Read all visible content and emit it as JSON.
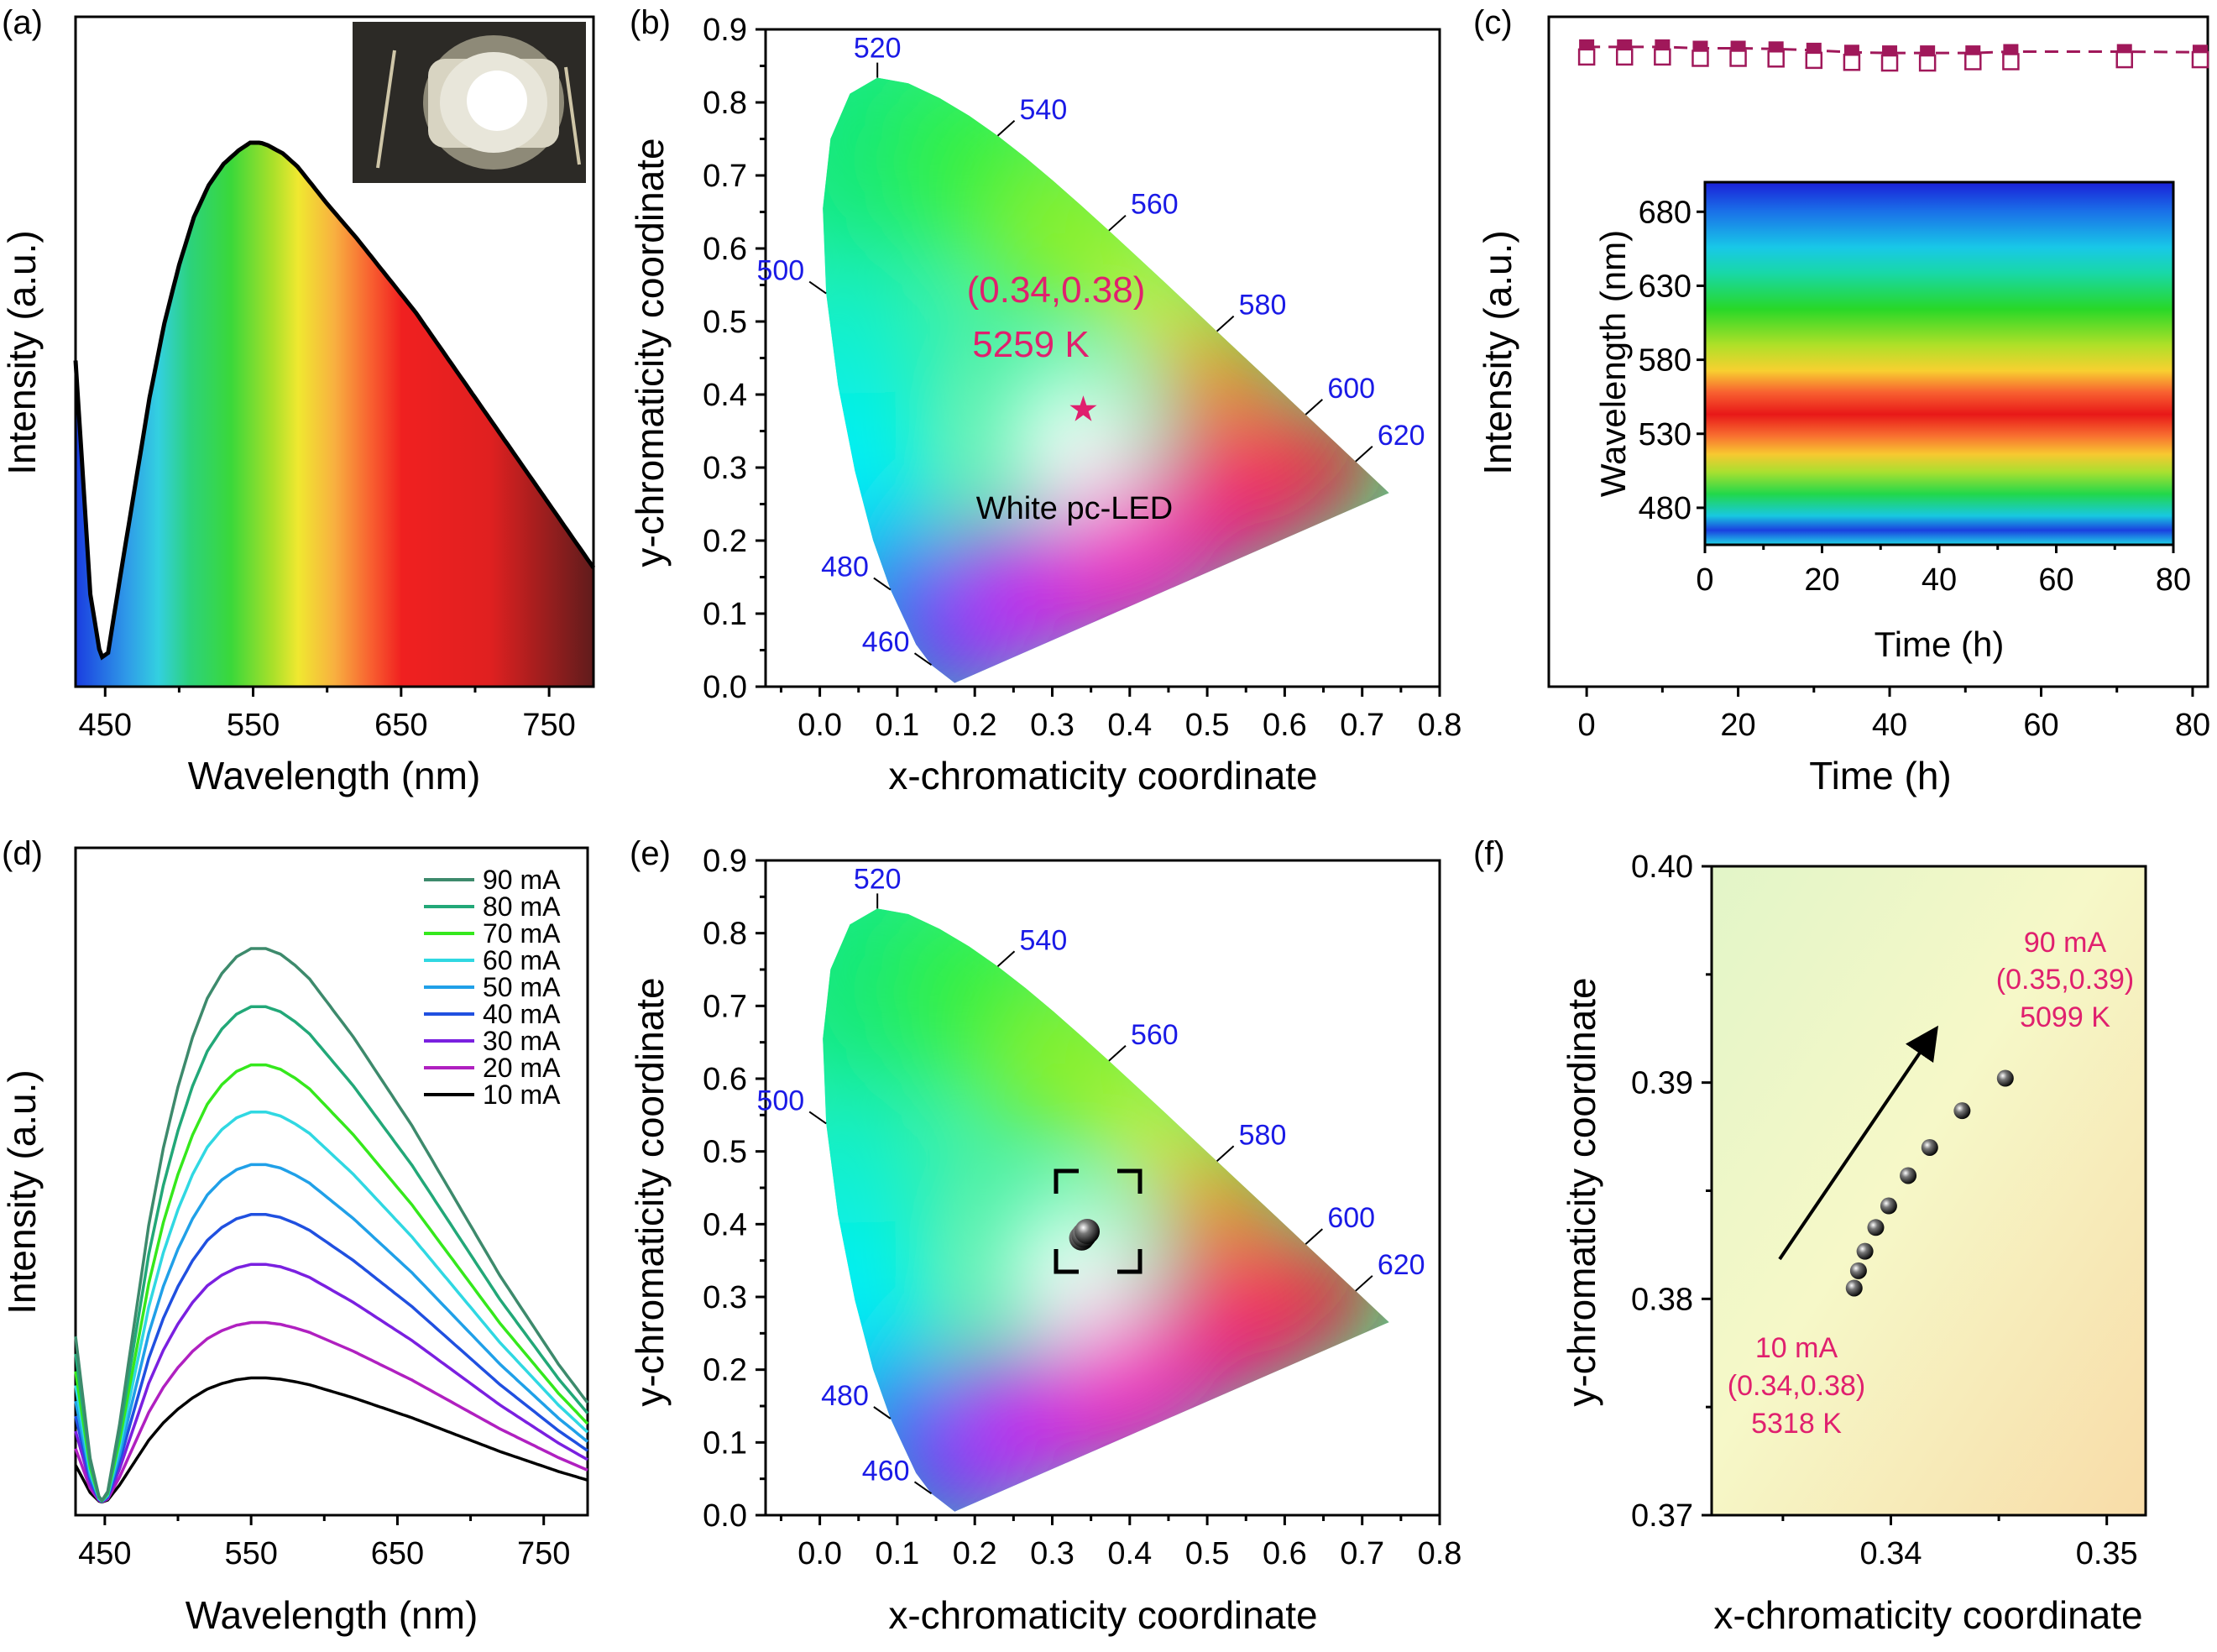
{
  "panels": [
    {
      "id": "a",
      "label": "(a)"
    },
    {
      "id": "b",
      "label": "(b)"
    },
    {
      "id": "c",
      "label": "(c)"
    },
    {
      "id": "d",
      "label": "(d)"
    },
    {
      "id": "e",
      "label": "(e)"
    },
    {
      "id": "f",
      "label": "(f)"
    }
  ],
  "colors": {
    "blue_label": "#1a1ae6",
    "magenta": "#e0206e",
    "c_series": "#a0185a"
  },
  "chart_data": [
    {
      "panel": "a",
      "type": "line",
      "xlabel": "Wavelength (nm)",
      "ylabel": "Intensity (a.u.)",
      "xlim": [
        430,
        780
      ],
      "xticks": [
        450,
        550,
        650,
        750
      ],
      "fill": "rainbow spectrum under curve",
      "inset": "photograph of LED package",
      "series": [
        {
          "x": [
            430,
            440,
            447,
            452,
            460,
            470,
            480,
            490,
            500,
            510,
            520,
            530,
            540,
            548,
            555,
            560,
            570,
            580,
            590,
            600,
            620,
            640,
            660,
            680,
            700,
            720,
            740,
            760,
            780
          ],
          "y": [
            0.59,
            0.15,
            0.03,
            0.04,
            0.18,
            0.35,
            0.52,
            0.66,
            0.77,
            0.86,
            0.92,
            0.96,
            0.985,
            1.0,
            1.0,
            0.995,
            0.98,
            0.955,
            0.92,
            0.885,
            0.82,
            0.75,
            0.68,
            0.6,
            0.52,
            0.44,
            0.36,
            0.28,
            0.2
          ]
        }
      ]
    },
    {
      "panel": "b",
      "type": "scatter",
      "xlabel": "x-chromaticity coordinate",
      "ylabel": "y-chromaticity coordinate",
      "xlim": [
        -0.07,
        0.8
      ],
      "ylim": [
        0,
        0.9
      ],
      "xticks": [
        "0.0",
        "0.1",
        "0.2",
        "0.3",
        "0.4",
        "0.5",
        "0.6",
        "0.7",
        "0.8"
      ],
      "yticks": [
        "0.0",
        "0.1",
        "0.2",
        "0.3",
        "0.4",
        "0.5",
        "0.6",
        "0.7",
        "0.8",
        "0.9"
      ],
      "locus_labels": [
        "460",
        "480",
        "500",
        "520",
        "540",
        "560",
        "580",
        "600",
        "620"
      ],
      "annotations": [
        "(0.34,0.38)",
        "5259 K",
        "White pc-LED"
      ],
      "point": {
        "x": 0.34,
        "y": 0.38,
        "marker": "star"
      }
    },
    {
      "panel": "c",
      "type": "line",
      "xlabel": "Time (h)",
      "ylabel": "Intensity (a.u.)",
      "xlim": [
        -5,
        82
      ],
      "xticks": [
        0,
        20,
        40,
        60,
        80
      ],
      "series": [
        {
          "marker": "square",
          "x": [
            0,
            5,
            10,
            15,
            20,
            25,
            30,
            35,
            40,
            45,
            51,
            56,
            71,
            81
          ],
          "y": [
            0.955,
            0.955,
            0.955,
            0.953,
            0.953,
            0.952,
            0.95,
            0.947,
            0.946,
            0.946,
            0.946,
            0.948,
            0.948,
            0.947
          ]
        },
        {
          "marker": "open-square",
          "x": [
            0,
            5,
            10,
            15,
            20,
            25,
            30,
            35,
            40,
            45,
            51,
            56,
            71,
            81
          ],
          "y": [
            0.94,
            0.94,
            0.94,
            0.938,
            0.938,
            0.937,
            0.935,
            0.932,
            0.931,
            0.931,
            0.933,
            0.933,
            0.936,
            0.936
          ]
        }
      ],
      "inset": {
        "type": "heatmap",
        "xlabel": "Time (h)",
        "ylabel": "Wavelength (nm)",
        "xlim": [
          0,
          80
        ],
        "xticks": [
          0,
          20,
          40,
          60,
          80
        ],
        "ylim": [
          455,
          700
        ],
        "yticks": [
          480,
          530,
          580,
          630,
          680
        ]
      }
    },
    {
      "panel": "d",
      "type": "line",
      "xlabel": "Wavelength (nm)",
      "ylabel": "Intensity (a.u.)",
      "xlim": [
        430,
        780
      ],
      "xticks": [
        450,
        550,
        650,
        750
      ],
      "x": [
        430,
        440,
        450,
        460,
        470,
        480,
        490,
        500,
        510,
        520,
        530,
        540,
        550,
        560,
        570,
        580,
        590,
        600,
        620,
        640,
        660,
        680,
        700,
        720,
        740,
        760,
        780
      ],
      "series": [
        {
          "name": "90 mA",
          "color": "#3d8a6c",
          "scale": 1.0
        },
        {
          "name": "80 mA",
          "color": "#22a878",
          "scale": 0.895
        },
        {
          "name": "70 mA",
          "color": "#35e81c",
          "scale": 0.79
        },
        {
          "name": "60 mA",
          "color": "#30d8e2",
          "scale": 0.705
        },
        {
          "name": "50 mA",
          "color": "#20a0e8",
          "scale": 0.61
        },
        {
          "name": "40 mA",
          "color": "#2050e0",
          "scale": 0.52
        },
        {
          "name": "30 mA",
          "color": "#7a20e0",
          "scale": 0.43
        },
        {
          "name": "20 mA",
          "color": "#b020c0",
          "scale": 0.325
        },
        {
          "name": "10 mA",
          "color": "#000000",
          "scale": 0.225
        }
      ]
    },
    {
      "panel": "e",
      "type": "scatter",
      "xlabel": "x-chromaticity coordinate",
      "ylabel": "y-chromaticity coordinate",
      "xlim": [
        -0.07,
        0.8
      ],
      "ylim": [
        0,
        0.9
      ],
      "xticks": [
        "0.0",
        "0.1",
        "0.2",
        "0.3",
        "0.4",
        "0.5",
        "0.6",
        "0.7",
        "0.8"
      ],
      "yticks": [
        "0.0",
        "0.1",
        "0.2",
        "0.3",
        "0.4",
        "0.5",
        "0.6",
        "0.7",
        "0.8",
        "0.9"
      ],
      "locus_labels": [
        "460",
        "480",
        "500",
        "520",
        "540",
        "560",
        "580",
        "600",
        "620"
      ],
      "points": [
        {
          "x": 0.338,
          "y": 0.381
        },
        {
          "x": 0.341,
          "y": 0.385
        },
        {
          "x": 0.345,
          "y": 0.39
        }
      ]
    },
    {
      "panel": "f",
      "type": "scatter",
      "xlabel": "x-chromaticity coordinate",
      "ylabel": "y-chromaticity coordinate",
      "xlim": [
        0.3317,
        0.3518
      ],
      "ylim": [
        0.37,
        0.4
      ],
      "xticks": [
        "0.34",
        "0.35"
      ],
      "yticks": [
        "0.37",
        "0.38",
        "0.39",
        "0.40"
      ],
      "points": [
        {
          "x": 0.3383,
          "y": 0.3805
        },
        {
          "x": 0.3385,
          "y": 0.3813
        },
        {
          "x": 0.3388,
          "y": 0.3822
        },
        {
          "x": 0.3393,
          "y": 0.3833
        },
        {
          "x": 0.3399,
          "y": 0.3843
        },
        {
          "x": 0.3408,
          "y": 0.3857
        },
        {
          "x": 0.3418,
          "y": 0.387
        },
        {
          "x": 0.3433,
          "y": 0.3887
        },
        {
          "x": 0.3453,
          "y": 0.3902
        }
      ],
      "annotations": {
        "end": [
          "90 mA",
          "(0.35,0.39)",
          "5099 K"
        ],
        "start": [
          "10 mA",
          "(0.34,0.38)",
          "5318 K"
        ]
      }
    }
  ]
}
